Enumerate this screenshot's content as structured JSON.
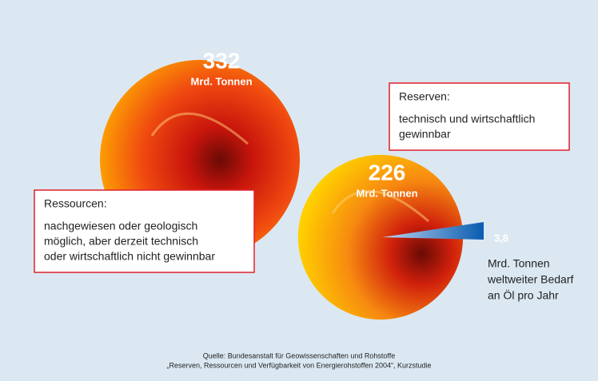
{
  "chart_data": {
    "type": "bubble",
    "categories": [
      "Ressourcen:",
      "Reserven:",
      null
    ],
    "values": [
      332,
      226,
      3.8
    ],
    "value_labels": [
      "332",
      "226",
      "3,8"
    ],
    "units": [
      "Mrd. Tonnen",
      "Mrd. Tonnen",
      "Mrd. Tonnen"
    ],
    "descriptions": [
      [
        "nachgewiesen oder geologisch",
        "möglich, aber derzeit technisch",
        "oder wirtschaftlich nicht gewinnbar"
      ],
      [
        "technisch und wirtschaftlich",
        "gewinnbar"
      ],
      [
        "weltweiter Bedarf",
        "an Öl pro Jahr"
      ]
    ],
    "colors": [
      "#e8431a",
      "#e8431a",
      "#0a5cb0"
    ],
    "source": [
      "Quelle: Bundesanstalt für Geowissenschaften und Rohstoffe",
      "„Reserven, Ressourcen und Verfügbarkeit von Energierohstoffen 2004“, Kurzstudie"
    ]
  }
}
